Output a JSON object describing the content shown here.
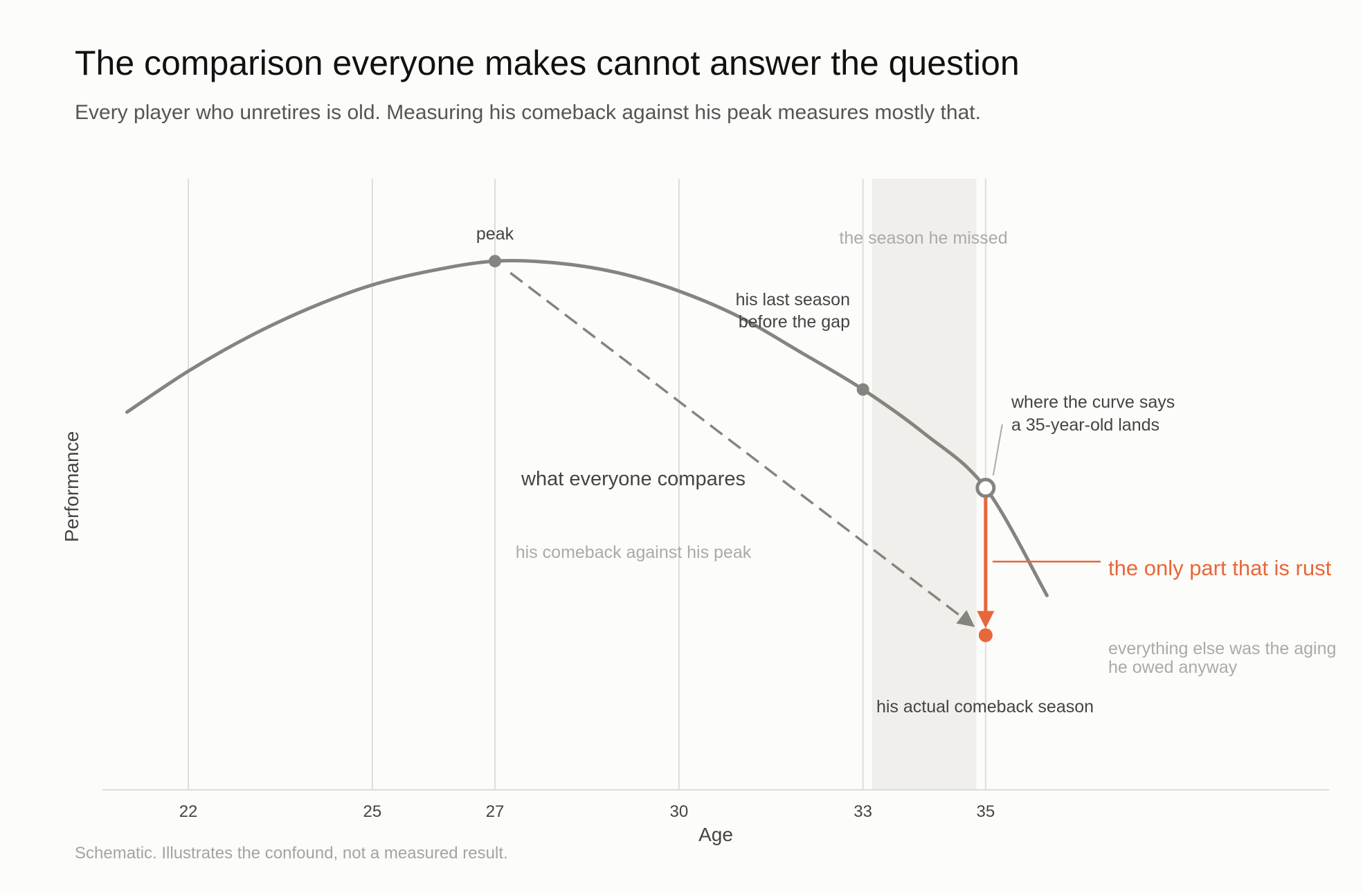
{
  "title": "The comparison everyone makes cannot answer the question",
  "subtitle": "Every player who unretires is old. Measuring his comeback against his peak measures mostly that.",
  "footnote": "Schematic. Illustrates the confound, not a measured result.",
  "colors": {
    "background": "#fcfcfa",
    "curve": "#858580",
    "accent": "#e8673a",
    "shade": "#f0efeb",
    "grid": "#dddddd"
  },
  "chart_data": {
    "type": "line",
    "xlabel": "Age",
    "ylabel": "Performance",
    "x_ticks": [
      22,
      25,
      27,
      30,
      33,
      35
    ],
    "xlim": [
      20.6,
      40.6
    ],
    "ylim": [
      0,
      10
    ],
    "grid": "vertical",
    "series": [
      {
        "x": [
          21,
          22,
          23,
          24,
          25,
          26,
          27,
          28,
          29,
          30,
          31,
          32,
          33,
          34,
          35,
          36
        ],
        "y": [
          6.18,
          6.85,
          7.42,
          7.89,
          8.26,
          8.5,
          8.65,
          8.62,
          8.46,
          8.16,
          7.73,
          7.15,
          6.55,
          5.83,
          4.94,
          3.18
        ]
      }
    ],
    "shaded_region": {
      "x": [
        33.15,
        34.85
      ],
      "label": "the season he missed"
    },
    "points": {
      "peak": {
        "x": 27,
        "y": 8.65,
        "label": "peak"
      },
      "last_season": {
        "x": 33,
        "y": 6.55,
        "label_line1": "his last season",
        "label_line2": "before the gap"
      },
      "expected": {
        "x": 35,
        "y": 4.94,
        "label_line1": "where the curve says",
        "label_line2": "a 35-year-old lands"
      },
      "actual": {
        "x": 35,
        "y": 2.53,
        "label": "his actual comeback season"
      }
    },
    "annotations": {
      "compare_main": "what everyone compares",
      "compare_sub": "his comeback against his peak",
      "rust": "the only part that is rust",
      "aging_line1": "everything else was the aging",
      "aging_line2": "he owed anyway"
    }
  }
}
